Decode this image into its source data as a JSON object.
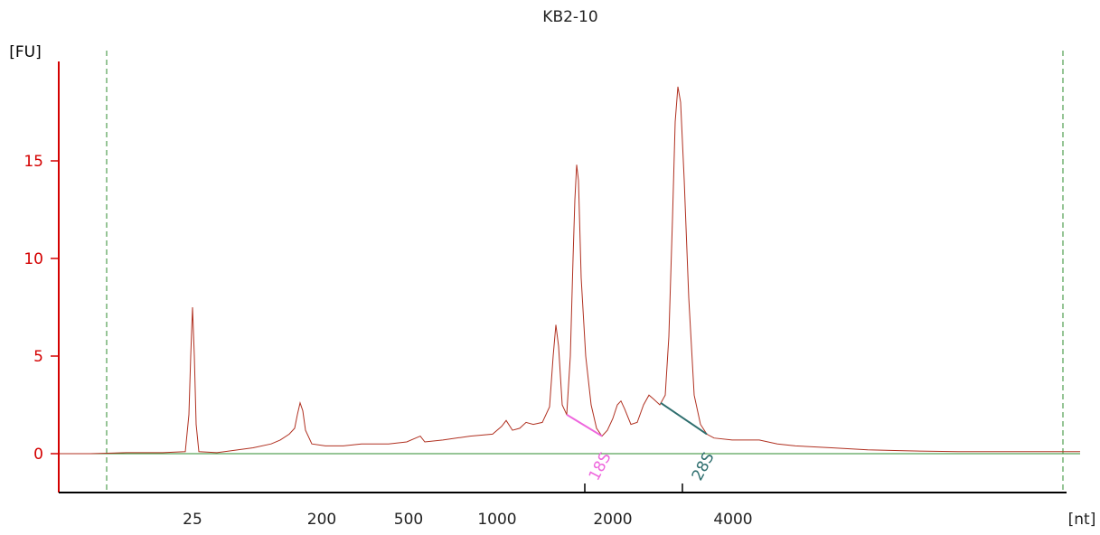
{
  "chart_data": {
    "type": "line",
    "title": "KB2-10",
    "ylabel": "[FU]",
    "xlabel": "[nt]",
    "ylim": [
      -1.9,
      21
    ],
    "yticks": [
      0,
      5,
      10,
      15
    ],
    "xticks": [
      "25",
      "200",
      "500",
      "1000",
      "2000",
      "4000"
    ],
    "axis_color": "#d40000",
    "trace_color": "#b03020",
    "baseline_color": "#2e8b2e",
    "markers": [
      {
        "label": "18S",
        "color": "#ee66dd"
      },
      {
        "label": "28S",
        "color": "#2e6e6e"
      }
    ],
    "series": [
      {
        "values_note": "electropherogram trace, fluorescence units over migration position",
        "points": [
          [
            64,
            0
          ],
          [
            100,
            0
          ],
          [
            140,
            0.05
          ],
          [
            180,
            0.05
          ],
          [
            205,
            0.1
          ],
          [
            209,
            2
          ],
          [
            211,
            5
          ],
          [
            213,
            7.5
          ],
          [
            215,
            5
          ],
          [
            217,
            1.5
          ],
          [
            220,
            0.1
          ],
          [
            240,
            0.05
          ],
          [
            280,
            0.3
          ],
          [
            300,
            0.5
          ],
          [
            310,
            0.7
          ],
          [
            320,
            1
          ],
          [
            326,
            1.3
          ],
          [
            329,
            2
          ],
          [
            332,
            2.6
          ],
          [
            335,
            2.2
          ],
          [
            338,
            1.2
          ],
          [
            345,
            0.5
          ],
          [
            360,
            0.4
          ],
          [
            380,
            0.4
          ],
          [
            400,
            0.5
          ],
          [
            430,
            0.5
          ],
          [
            450,
            0.6
          ],
          [
            460,
            0.8
          ],
          [
            465,
            0.9
          ],
          [
            470,
            0.6
          ],
          [
            490,
            0.7
          ],
          [
            520,
            0.9
          ],
          [
            545,
            1
          ],
          [
            555,
            1.4
          ],
          [
            560,
            1.7
          ],
          [
            567,
            1.2
          ],
          [
            575,
            1.3
          ],
          [
            582,
            1.6
          ],
          [
            590,
            1.5
          ],
          [
            600,
            1.6
          ],
          [
            608,
            2.4
          ],
          [
            612,
            5
          ],
          [
            615,
            6.6
          ],
          [
            618,
            5.5
          ],
          [
            622,
            2.5
          ],
          [
            627,
            2
          ],
          [
            631,
            5
          ],
          [
            634,
            10
          ],
          [
            636,
            13
          ],
          [
            638,
            14.8
          ],
          [
            640,
            14
          ],
          [
            643,
            9
          ],
          [
            648,
            5
          ],
          [
            654,
            2.5
          ],
          [
            660,
            1.3
          ],
          [
            666,
            0.9
          ],
          [
            672,
            1.2
          ],
          [
            678,
            1.8
          ],
          [
            683,
            2.5
          ],
          [
            687,
            2.7
          ],
          [
            691,
            2.3
          ],
          [
            698,
            1.5
          ],
          [
            705,
            1.6
          ],
          [
            712,
            2.5
          ],
          [
            718,
            3
          ],
          [
            723,
            2.8
          ],
          [
            730,
            2.5
          ],
          [
            736,
            3
          ],
          [
            740,
            6
          ],
          [
            744,
            12
          ],
          [
            747,
            17
          ],
          [
            750,
            18.8
          ],
          [
            753,
            18
          ],
          [
            757,
            14
          ],
          [
            762,
            8
          ],
          [
            768,
            3
          ],
          [
            775,
            1.5
          ],
          [
            782,
            1
          ],
          [
            790,
            0.8
          ],
          [
            810,
            0.7
          ],
          [
            840,
            0.7
          ],
          [
            860,
            0.5
          ],
          [
            880,
            0.4
          ],
          [
            920,
            0.3
          ],
          [
            960,
            0.2
          ],
          [
            1000,
            0.15
          ],
          [
            1060,
            0.1
          ],
          [
            1100,
            0.1
          ],
          [
            1140,
            0.1
          ],
          [
            1176,
            0.1
          ],
          [
            1195,
            0.1
          ]
        ]
      }
    ]
  }
}
